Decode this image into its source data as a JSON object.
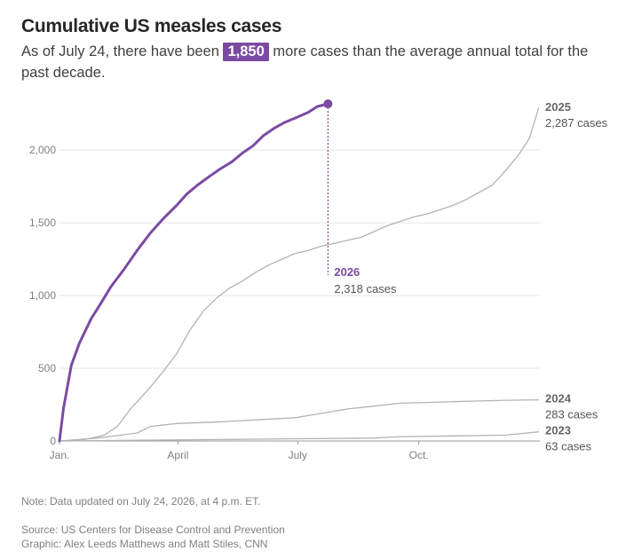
{
  "header": {
    "title": "Cumulative US measles cases",
    "subtitle_before": "As of July 24, there have been ",
    "subtitle_highlight": "1,850",
    "subtitle_after": " more cases than the average annual total for the past decade."
  },
  "footer": {
    "note": "Note: Data updated on July 24, 2026, at 4 p.m. ET.",
    "source": "Source: US Centers for Disease Control and Prevention",
    "credit": "Graphic: Alex Leeds Matthews and Matt Stiles, CNN"
  },
  "colors": {
    "highlight": "#7b4ba3",
    "other_years": "#b3b3b3",
    "grid": "#e6e6e6"
  },
  "chart_data": {
    "type": "line",
    "title": "Cumulative US measles cases",
    "xlabel": "",
    "ylabel": "",
    "x_unit": "day of year",
    "xlim": [
      1,
      366
    ],
    "ylim": [
      0,
      2300
    ],
    "yticks": [
      0,
      500,
      1000,
      1500,
      2000
    ],
    "ytick_labels": [
      "0",
      "500",
      "1,000",
      "1,500",
      "2,000"
    ],
    "xticks": [
      1,
      91,
      182,
      274
    ],
    "xtick_labels": [
      "Jan.",
      "April",
      "July",
      "Oct."
    ],
    "grid": true,
    "legend": "direct labels at line ends",
    "series": [
      {
        "name": "2026",
        "label": "2026",
        "end_label": "2,318 cases",
        "highlight": true,
        "x": [
          1,
          4,
          10,
          16,
          25,
          32,
          40,
          50,
          60,
          70,
          80,
          90,
          98,
          106,
          115,
          123,
          132,
          140,
          148,
          156,
          164,
          172,
          180,
          190,
          197,
          205
        ],
        "y": [
          0,
          220,
          520,
          670,
          840,
          940,
          1060,
          1180,
          1310,
          1430,
          1530,
          1620,
          1700,
          1760,
          1820,
          1870,
          1920,
          1980,
          2030,
          2100,
          2150,
          2190,
          2220,
          2260,
          2300,
          2318
        ]
      },
      {
        "name": "2025",
        "label": "2025",
        "end_label": "2,287 cases",
        "highlight": false,
        "x": [
          1,
          20,
          35,
          45,
          55,
          70,
          80,
          90,
          100,
          110,
          120,
          130,
          140,
          150,
          160,
          170,
          180,
          190,
          200,
          210,
          220,
          230,
          240,
          250,
          260,
          270,
          280,
          290,
          300,
          310,
          320,
          330,
          340,
          350,
          358,
          365
        ],
        "y": [
          0,
          10,
          40,
          100,
          220,
          370,
          480,
          600,
          760,
          890,
          980,
          1050,
          1100,
          1160,
          1210,
          1250,
          1290,
          1310,
          1340,
          1360,
          1380,
          1400,
          1440,
          1480,
          1510,
          1540,
          1560,
          1590,
          1620,
          1660,
          1710,
          1760,
          1860,
          1970,
          2080,
          2287
        ]
      },
      {
        "name": "2024",
        "label": "2024",
        "end_label": "283 cases",
        "highlight": false,
        "x": [
          1,
          30,
          60,
          70,
          90,
          120,
          150,
          180,
          200,
          220,
          240,
          260,
          280,
          300,
          320,
          340,
          365
        ],
        "y": [
          0,
          20,
          55,
          100,
          120,
          130,
          145,
          160,
          190,
          220,
          240,
          260,
          265,
          270,
          275,
          280,
          283
        ]
      },
      {
        "name": "2023",
        "label": "2023",
        "end_label": "63 cases",
        "highlight": false,
        "x": [
          1,
          60,
          120,
          180,
          240,
          260,
          300,
          340,
          365
        ],
        "y": [
          0,
          5,
          10,
          15,
          20,
          30,
          35,
          40,
          63
        ]
      }
    ]
  }
}
